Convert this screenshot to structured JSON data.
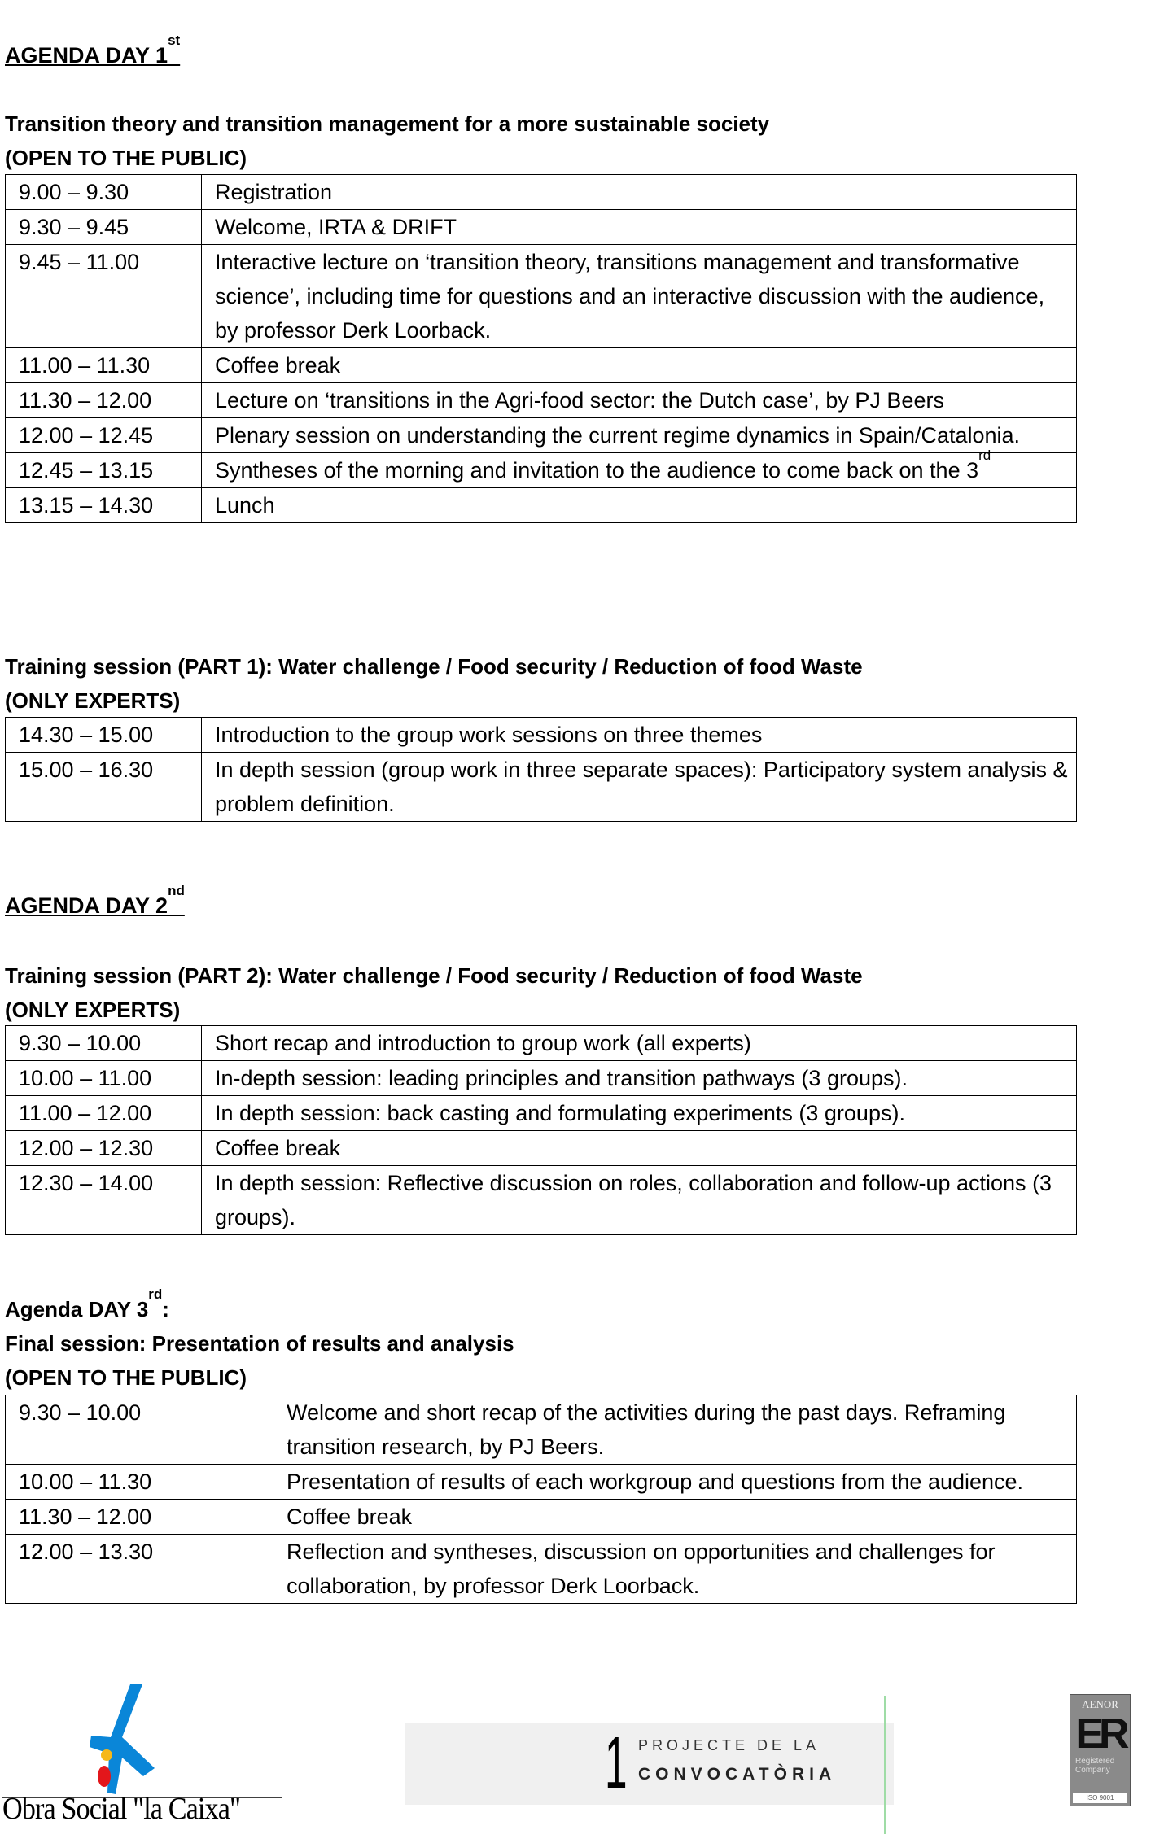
{
  "day1": {
    "title": "AGENDA DAY 1",
    "title_sup": "st",
    "section1": {
      "heading": "Transition theory and transition management for a more sustainable society",
      "audience": "(OPEN TO THE PUBLIC)",
      "rows": [
        {
          "time": "9.00 – 9.30",
          "text": "Registration"
        },
        {
          "time": "9.30 – 9.45",
          "text": "Welcome, IRTA & DRIFT"
        },
        {
          "time": "9.45 – 11.00",
          "text": "Interactive lecture on ‘transition theory, transitions management and transformative science’, including time for questions and an interactive discussion with the audience, by professor Derk Loorback."
        },
        {
          "time": "11.00 – 11.30",
          "text": "Coffee break"
        },
        {
          "time": "11.30 – 12.00",
          "text": "Lecture on ‘transitions in the Agri-food sector: the Dutch case’, by PJ Beers"
        },
        {
          "time": "12.00 – 12.45",
          "text": "Plenary session on understanding the current regime dynamics in Spain/Catalonia."
        },
        {
          "time": "12.45 – 13.15",
          "text": "Syntheses of the morning and invitation to the audience to come back on the 3",
          "sup": "rd"
        },
        {
          "time": "13.15 – 14.30",
          "text": "Lunch"
        }
      ]
    },
    "section2": {
      "heading": "Training session (PART 1): Water challenge / Food security / Reduction of food Waste",
      "audience": "(ONLY EXPERTS)",
      "rows": [
        {
          "time": "14.30 – 15.00",
          "text": "Introduction to the group work sessions on three themes"
        },
        {
          "time": "15.00 – 16.30",
          "text": "In depth session (group work in three separate spaces): Participatory system analysis & problem definition."
        }
      ]
    }
  },
  "day2": {
    "title": "AGENDA DAY 2",
    "title_sup": "nd",
    "section": {
      "heading": "Training session (PART 2): Water challenge / Food security / Reduction of food Waste",
      "audience": "(ONLY EXPERTS)",
      "rows": [
        {
          "time": "9.30 – 10.00",
          "text": "Short recap and introduction to group work (all experts)"
        },
        {
          "time": "10.00 – 11.00",
          "text": "In-depth session: leading principles and transition pathways (3 groups)."
        },
        {
          "time": "11.00 – 12.00",
          "text": "In depth session: back casting and formulating experiments (3 groups)."
        },
        {
          "time": "12.00 – 12.30",
          "text": "Coffee break"
        },
        {
          "time": "12.30 – 14.00",
          "text": "In depth session: Reflective discussion on roles, collaboration and follow-up actions (3 groups)."
        }
      ]
    }
  },
  "day3": {
    "title": "Agenda DAY 3",
    "title_sup": "rd",
    "title_suffix": ":",
    "heading": "Final session: Presentation of results and analysis",
    "audience": "(OPEN TO THE PUBLIC)",
    "rows": [
      {
        "time": "9.30 – 10.00",
        "text": "Welcome and short recap of the activities during the past days. Reframing transition research, by PJ Beers."
      },
      {
        "time": "10.00 – 11.30",
        "text": "Presentation of results of each workgroup and questions from the audience."
      },
      {
        "time": "11.30 – 12.00",
        "text": "Coffee break"
      },
      {
        "time": "12.00 – 13.30",
        "text": "Reflection and syntheses, discussion on opportunities and challenges for collaboration, by professor Derk Loorback."
      }
    ]
  },
  "footer": {
    "caixa": {
      "text": "Obra Social \"la Caixa\"",
      "colors": {
        "star": "#0a86d8",
        "yellow": "#f5b81a",
        "red": "#e3161b"
      }
    },
    "projecte": {
      "number": "1",
      "line1": "PROJECTE DE LA",
      "line2": "CONVOCATÒRIA"
    },
    "aenor": {
      "brand": "AENOR",
      "mark": "ER",
      "line1": "Registered",
      "line2": "Company",
      "cert": "ISO 9001"
    }
  }
}
